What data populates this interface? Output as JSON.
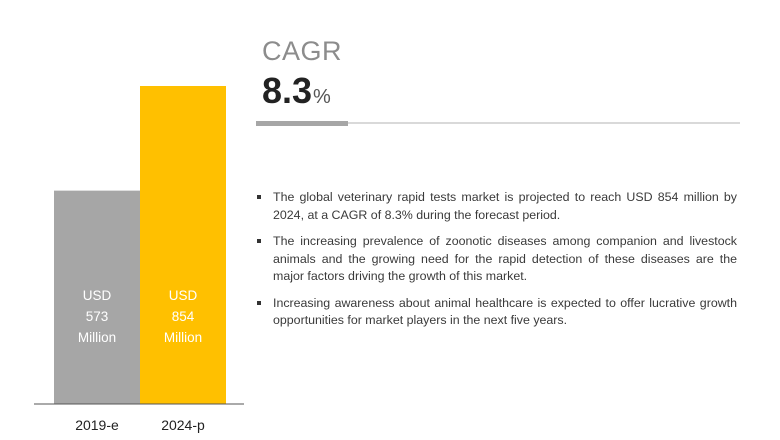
{
  "cagr": {
    "label": "CAGR",
    "value": "8.3",
    "unit": "%"
  },
  "bullets": [
    "The global veterinary rapid tests market is projected to reach USD 854 million by 2024, at a CAGR of 8.3% during the forecast period.",
    "The increasing prevalence of zoonotic diseases among companion and livestock animals and the growing need for the rapid detection of these diseases are the major factors driving the growth of this market.",
    "Increasing awareness about animal healthcare is expected to offer lucrative growth opportunities for market players in the next five years."
  ],
  "chart_data": {
    "type": "bar",
    "categories": [
      "2019-e",
      "2024-p"
    ],
    "values": [
      573,
      854
    ],
    "bar_labels": [
      [
        "USD",
        "573",
        "Million"
      ],
      [
        "USD",
        "854",
        "Million"
      ]
    ],
    "colors": [
      "#a6a6a6",
      "#ffc000"
    ],
    "ylim": [
      0,
      854
    ],
    "grid": false,
    "legend": "none"
  }
}
